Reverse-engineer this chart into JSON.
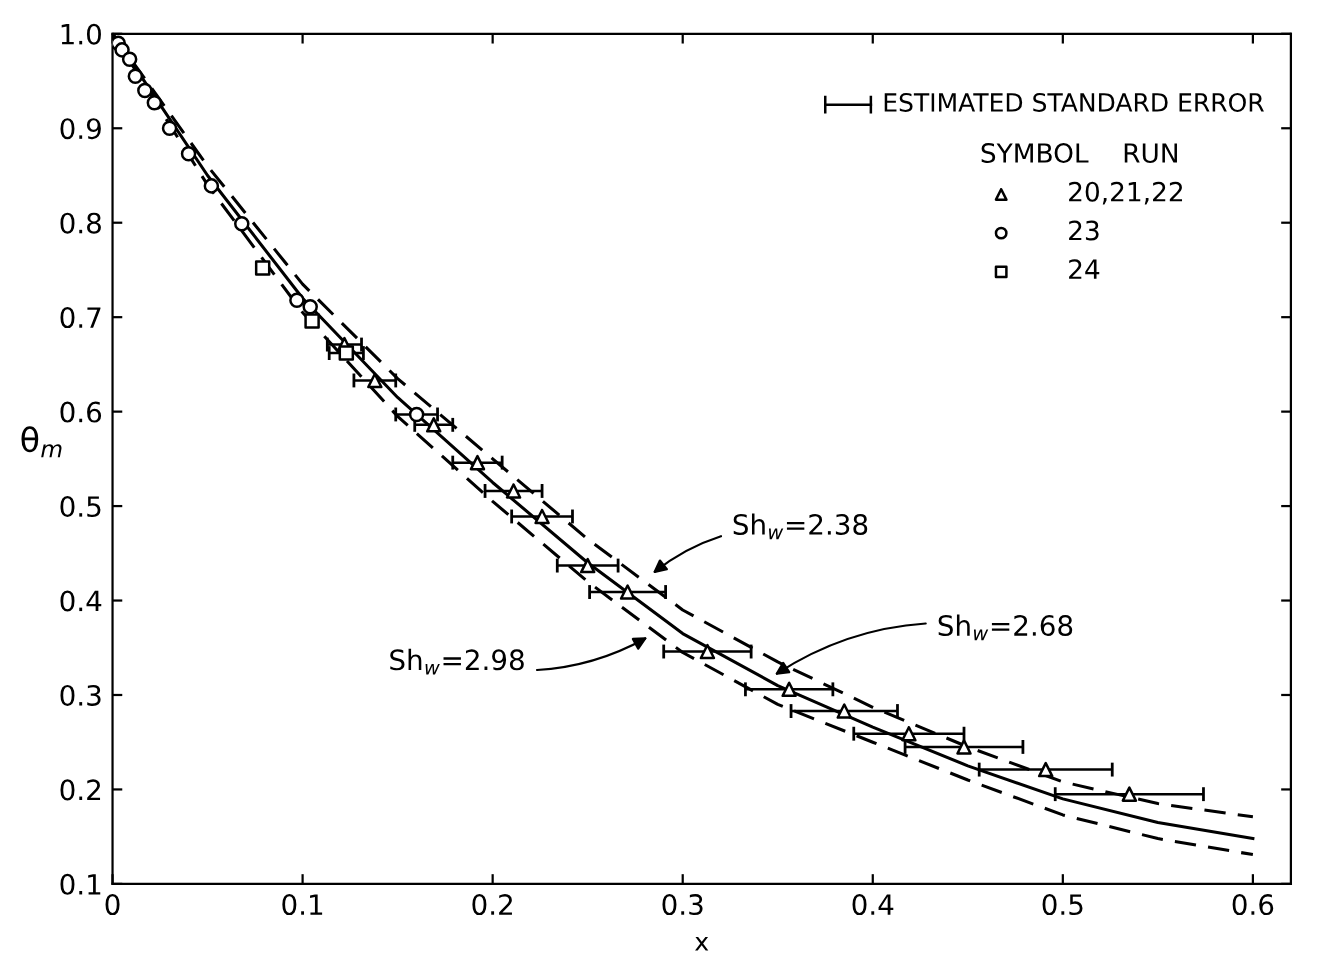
{
  "chart_data": {
    "type": "scatter",
    "xlabel": "x",
    "ylabel": "θ$_{m}$",
    "xlim": [
      0,
      0.62
    ],
    "ylim": [
      0.1,
      1.0
    ],
    "xticks": [
      0,
      0.1,
      0.2,
      0.3,
      0.4,
      0.5,
      0.6
    ],
    "yticks": [
      0.1,
      0.2,
      0.3,
      0.4,
      0.5,
      0.6,
      0.7,
      0.8,
      0.9,
      {
        "value": 1.0,
        "label": "1.0"
      }
    ],
    "grid": false,
    "legend": "top right",
    "legend_title": "SYMBOL    RUN",
    "series": [
      {
        "name": "20,21,22",
        "marker": "triangle",
        "color": "#000000",
        "x": [
          0.122,
          0.138,
          0.169,
          0.192,
          0.211,
          0.226,
          0.25,
          0.271,
          0.313,
          0.356,
          0.385,
          0.419,
          0.448,
          0.491,
          0.535
        ],
        "values": [
          0.671,
          0.633,
          0.586,
          0.546,
          0.516,
          0.489,
          0.437,
          0.409,
          0.346,
          0.306,
          0.283,
          0.259,
          0.245,
          0.221,
          0.195
        ],
        "xerrors": [
          0.009,
          0.011,
          0.01,
          0.013,
          0.015,
          0.016,
          0.016,
          0.02,
          0.023,
          0.023,
          0.028,
          0.029,
          0.031,
          0.035,
          0.039
        ]
      },
      {
        "name": "23",
        "marker": "circle",
        "color": "#000000",
        "x": [
          0.003,
          0.005,
          0.009,
          0.012,
          0.017,
          0.022,
          0.03,
          0.04,
          0.052,
          0.068,
          0.097,
          0.104,
          0.16
        ],
        "values": [
          0.99,
          0.983,
          0.973,
          0.955,
          0.94,
          0.927,
          0.9,
          0.873,
          0.839,
          0.799,
          0.718,
          0.711,
          0.597
        ],
        "xerrors": [
          null,
          null,
          null,
          null,
          null,
          null,
          null,
          null,
          null,
          null,
          null,
          null,
          0.011
        ]
      },
      {
        "name": "24",
        "marker": "square",
        "color": "#000000",
        "x": [
          0.079,
          0.105,
          0.123
        ],
        "values": [
          0.752,
          0.696,
          0.662
        ],
        "xerrors": [
          null,
          null,
          0.009
        ]
      },
      {
        "type": "line",
        "line_style": "dashed",
        "color": "#000000",
        "x": [
          0,
          0.025,
          0.05,
          0.1,
          0.15,
          0.2,
          0.25,
          0.3,
          0.35,
          0.4,
          0.45,
          0.5,
          0.55,
          0.6
        ],
        "values": [
          1.0,
          0.93,
          0.86,
          0.735,
          0.635,
          0.55,
          0.465,
          0.39,
          0.335,
          0.287,
          0.245,
          0.208,
          0.185,
          0.171
        ]
      },
      {
        "type": "line",
        "line_style": "solid",
        "color": "#000000",
        "x": [
          0,
          0.025,
          0.05,
          0.1,
          0.15,
          0.2,
          0.25,
          0.3,
          0.35,
          0.4,
          0.45,
          0.5,
          0.55,
          0.6
        ],
        "values": [
          1.0,
          0.925,
          0.85,
          0.72,
          0.615,
          0.525,
          0.44,
          0.365,
          0.31,
          0.266,
          0.225,
          0.19,
          0.165,
          0.148
        ]
      },
      {
        "type": "line",
        "line_style": "dashed",
        "color": "#000000",
        "x": [
          0,
          0.025,
          0.05,
          0.1,
          0.15,
          0.2,
          0.25,
          0.3,
          0.35,
          0.4,
          0.45,
          0.5,
          0.55,
          0.6
        ],
        "values": [
          1.0,
          0.92,
          0.84,
          0.705,
          0.595,
          0.505,
          0.42,
          0.345,
          0.29,
          0.25,
          0.21,
          0.173,
          0.148,
          0.131
        ]
      }
    ],
    "annotations": [
      {
        "text": "Sh$_{w}$=2.38",
        "x": 0.282,
        "y": 0.425
      },
      {
        "text": "Sh$_{w}$=2.98",
        "x": 0.284,
        "y": 0.364
      },
      {
        "text": "Sh$_{w}$=2.68",
        "x": 0.346,
        "y": 0.318
      },
      "ESTIMATED STANDARD ERROR"
    ]
  }
}
